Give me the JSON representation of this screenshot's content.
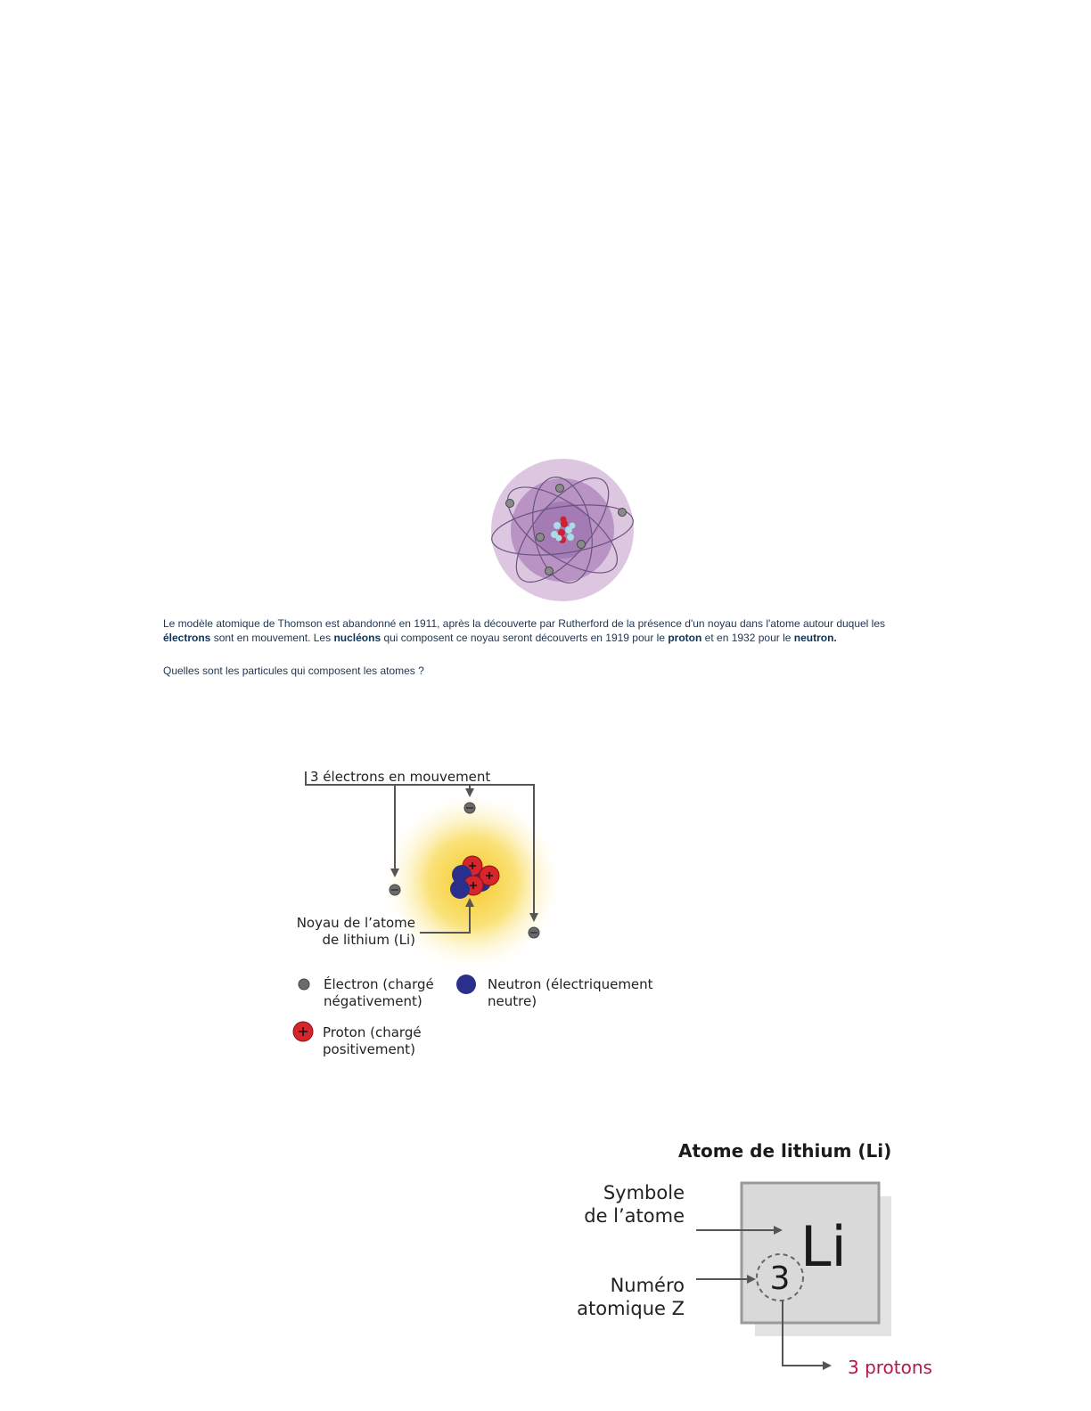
{
  "intro": {
    "line1": "Le modèle atomique de Thomson est abandonné en 1911, après la découverte par Rutherford de la présence d'un noyau dans l'atome autour duquel les",
    "term_electrons": "électrons",
    "mid1": " sont en mouvement. Les ",
    "term_nucleons": "nucléons",
    "mid2": " qui composent ce noyau seront découverts en 1919 pour le ",
    "term_proton": "proton",
    "mid3": " et en 1932 pour le ",
    "term_neutron": "neutron."
  },
  "question": "Quelles sont les particules qui composent les atomes ?",
  "lithium_diagram": {
    "electrons_label": "3 électrons en mouvement",
    "nucleus_label_line1": "Noyau de l’atome",
    "nucleus_label_line2": "de lithium (Li)",
    "legend": {
      "electron_line1": "Électron (chargé",
      "electron_line2": "négativement)",
      "neutron_line1": "Neutron (électriquement",
      "neutron_line2": "neutre)",
      "proton_line1": "Proton (chargé",
      "proton_line2": "positivement)"
    },
    "colors": {
      "electron": "#6b6b6b",
      "proton": "#d7262b",
      "neutron": "#2a2f8c",
      "glow": "#f8d23a"
    }
  },
  "element_card": {
    "title": "Atome de lithium (Li)",
    "symbol_label_line1": "Symbole",
    "symbol_label_line2": "de l’atome",
    "z_label_line1": "Numéro",
    "z_label_line2": "atomique Z",
    "symbol": "Li",
    "atomic_number": "3",
    "protons_label": "3 protons",
    "accent_color": "#b5174f"
  }
}
